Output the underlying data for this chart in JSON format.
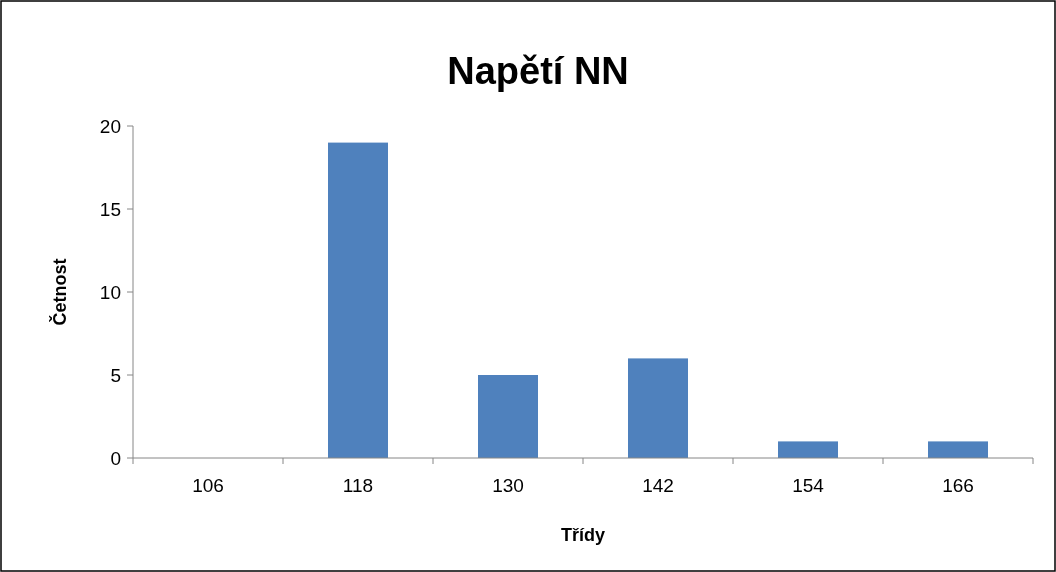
{
  "chart_data": {
    "type": "bar",
    "title": "Napětí NN",
    "xlabel": "Třídy",
    "ylabel": "Četnost",
    "categories": [
      "106",
      "118",
      "130",
      "142",
      "154",
      "166"
    ],
    "values": [
      0,
      19,
      5,
      6,
      1,
      1
    ],
    "color": "#4f81bd",
    "ylim": [
      0,
      20
    ],
    "yticks": [
      0,
      5,
      10,
      15,
      20
    ],
    "grid": false
  }
}
